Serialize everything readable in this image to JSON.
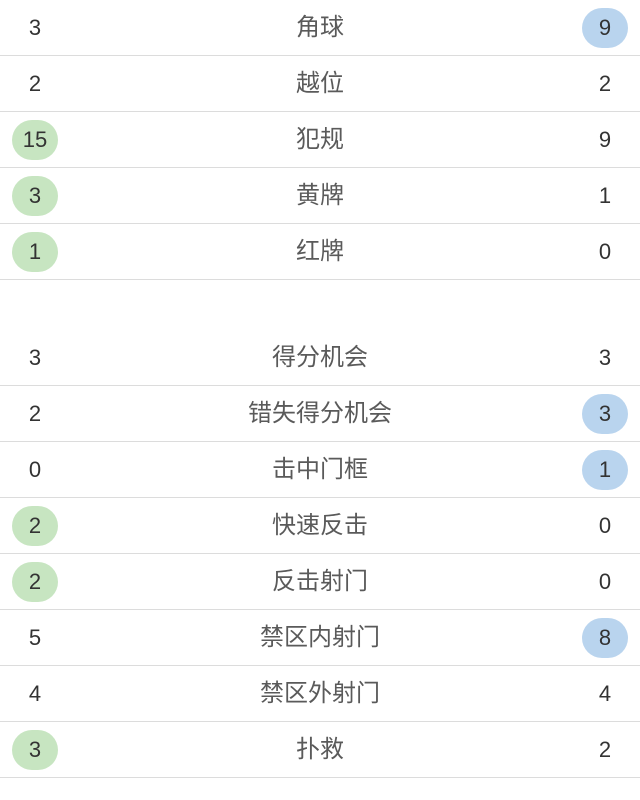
{
  "colors": {
    "home_highlight": "#c7e5c1",
    "away_highlight": "#b9d4ee",
    "divider": "#dcdcdc",
    "label_color": "#5a5a5a",
    "value_color": "#333333",
    "page_background": "#ffffff"
  },
  "stats": {
    "rows": [
      {
        "label": "角球",
        "home": "3",
        "away": "9",
        "home_highlight": false,
        "away_highlight": true
      },
      {
        "label": "越位",
        "home": "2",
        "away": "2",
        "home_highlight": false,
        "away_highlight": false
      },
      {
        "label": "犯规",
        "home": "15",
        "away": "9",
        "home_highlight": true,
        "away_highlight": false
      },
      {
        "label": "黄牌",
        "home": "3",
        "away": "1",
        "home_highlight": true,
        "away_highlight": false
      },
      {
        "label": "红牌",
        "home": "1",
        "away": "0",
        "home_highlight": true,
        "away_highlight": false
      },
      {
        "label": "得分机会",
        "home": "3",
        "away": "3",
        "home_highlight": false,
        "away_highlight": false
      },
      {
        "label": "错失得分机会",
        "home": "2",
        "away": "3",
        "home_highlight": false,
        "away_highlight": true
      },
      {
        "label": "击中门框",
        "home": "0",
        "away": "1",
        "home_highlight": false,
        "away_highlight": true
      },
      {
        "label": "快速反击",
        "home": "2",
        "away": "0",
        "home_highlight": true,
        "away_highlight": false
      },
      {
        "label": "反击射门",
        "home": "2",
        "away": "0",
        "home_highlight": true,
        "away_highlight": false
      },
      {
        "label": "禁区内射门",
        "home": "5",
        "away": "8",
        "home_highlight": false,
        "away_highlight": true
      },
      {
        "label": "禁区外射门",
        "home": "4",
        "away": "4",
        "home_highlight": false,
        "away_highlight": false
      },
      {
        "label": "扑救",
        "home": "3",
        "away": "2",
        "home_highlight": true,
        "away_highlight": false
      }
    ]
  }
}
